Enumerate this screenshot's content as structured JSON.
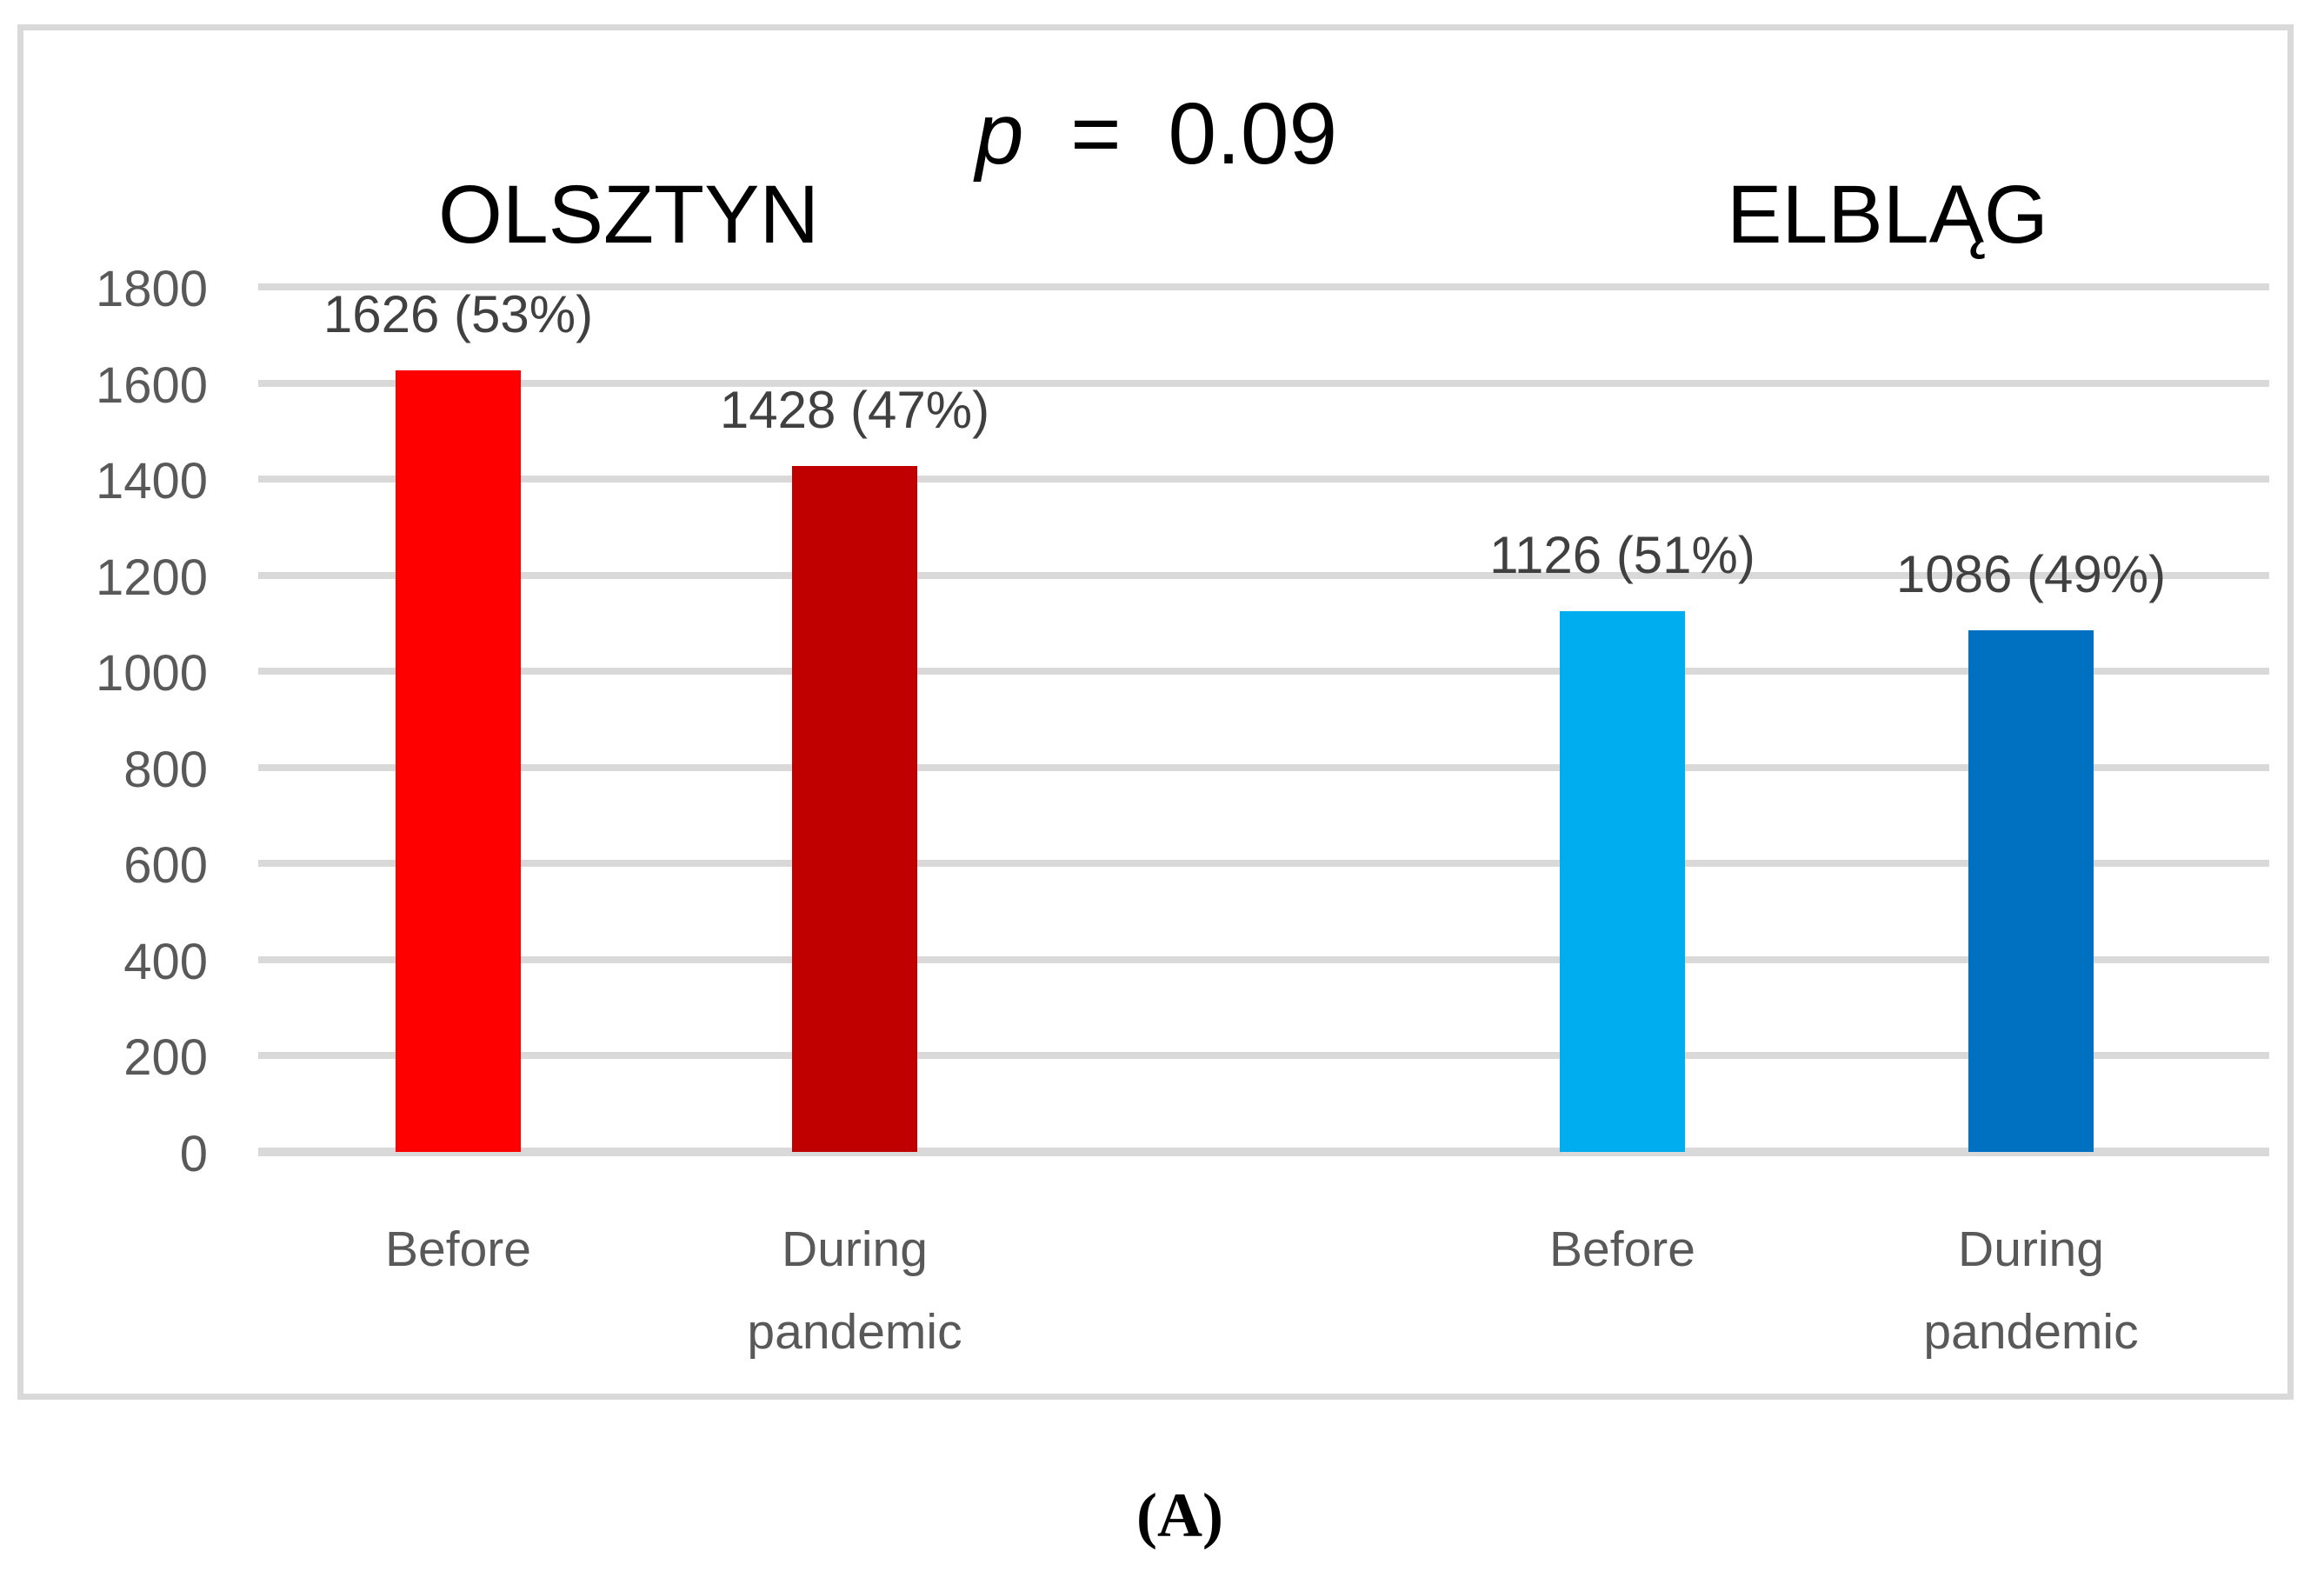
{
  "chart_data": {
    "type": "bar",
    "title": "p = 0.09",
    "title_parts": {
      "p": "p",
      "eq": "=",
      "value": "0.09"
    },
    "ylabel": "",
    "xlabel": "",
    "ylim": [
      0,
      1800
    ],
    "ytick_step": 200,
    "yticks": [
      0,
      200,
      400,
      600,
      800,
      1000,
      1200,
      1400,
      1600,
      1800
    ],
    "grid": true,
    "legend": false,
    "groups": [
      {
        "name": "OLSZTYN",
        "bars": [
          {
            "category": "Before",
            "value": 1626,
            "label": "1626 (53%)",
            "color": "#FF0000"
          },
          {
            "category": "During pandemic",
            "value": 1428,
            "label": "1428 (47%)",
            "color": "#C00000"
          }
        ]
      },
      {
        "name": "ELBLĄG",
        "bars": [
          {
            "category": "Before",
            "value": 1126,
            "label": "1126 (51%)",
            "color": "#00AEEF"
          },
          {
            "category": "During pandemic",
            "value": 1086,
            "label": "1086 (49%)",
            "color": "#0070C0"
          }
        ]
      }
    ]
  },
  "caption": "(A)",
  "colors": {
    "frame_border": "#D9D9D9",
    "gridline": "#D9D9D9",
    "axis_line": "#D9D9D9",
    "tick_label": "#595959",
    "category_label": "#595959",
    "data_label": "#404040",
    "title_text": "#000000",
    "title_equals": "#767171",
    "group_title": "#000000",
    "background": "#FFFFFF"
  }
}
